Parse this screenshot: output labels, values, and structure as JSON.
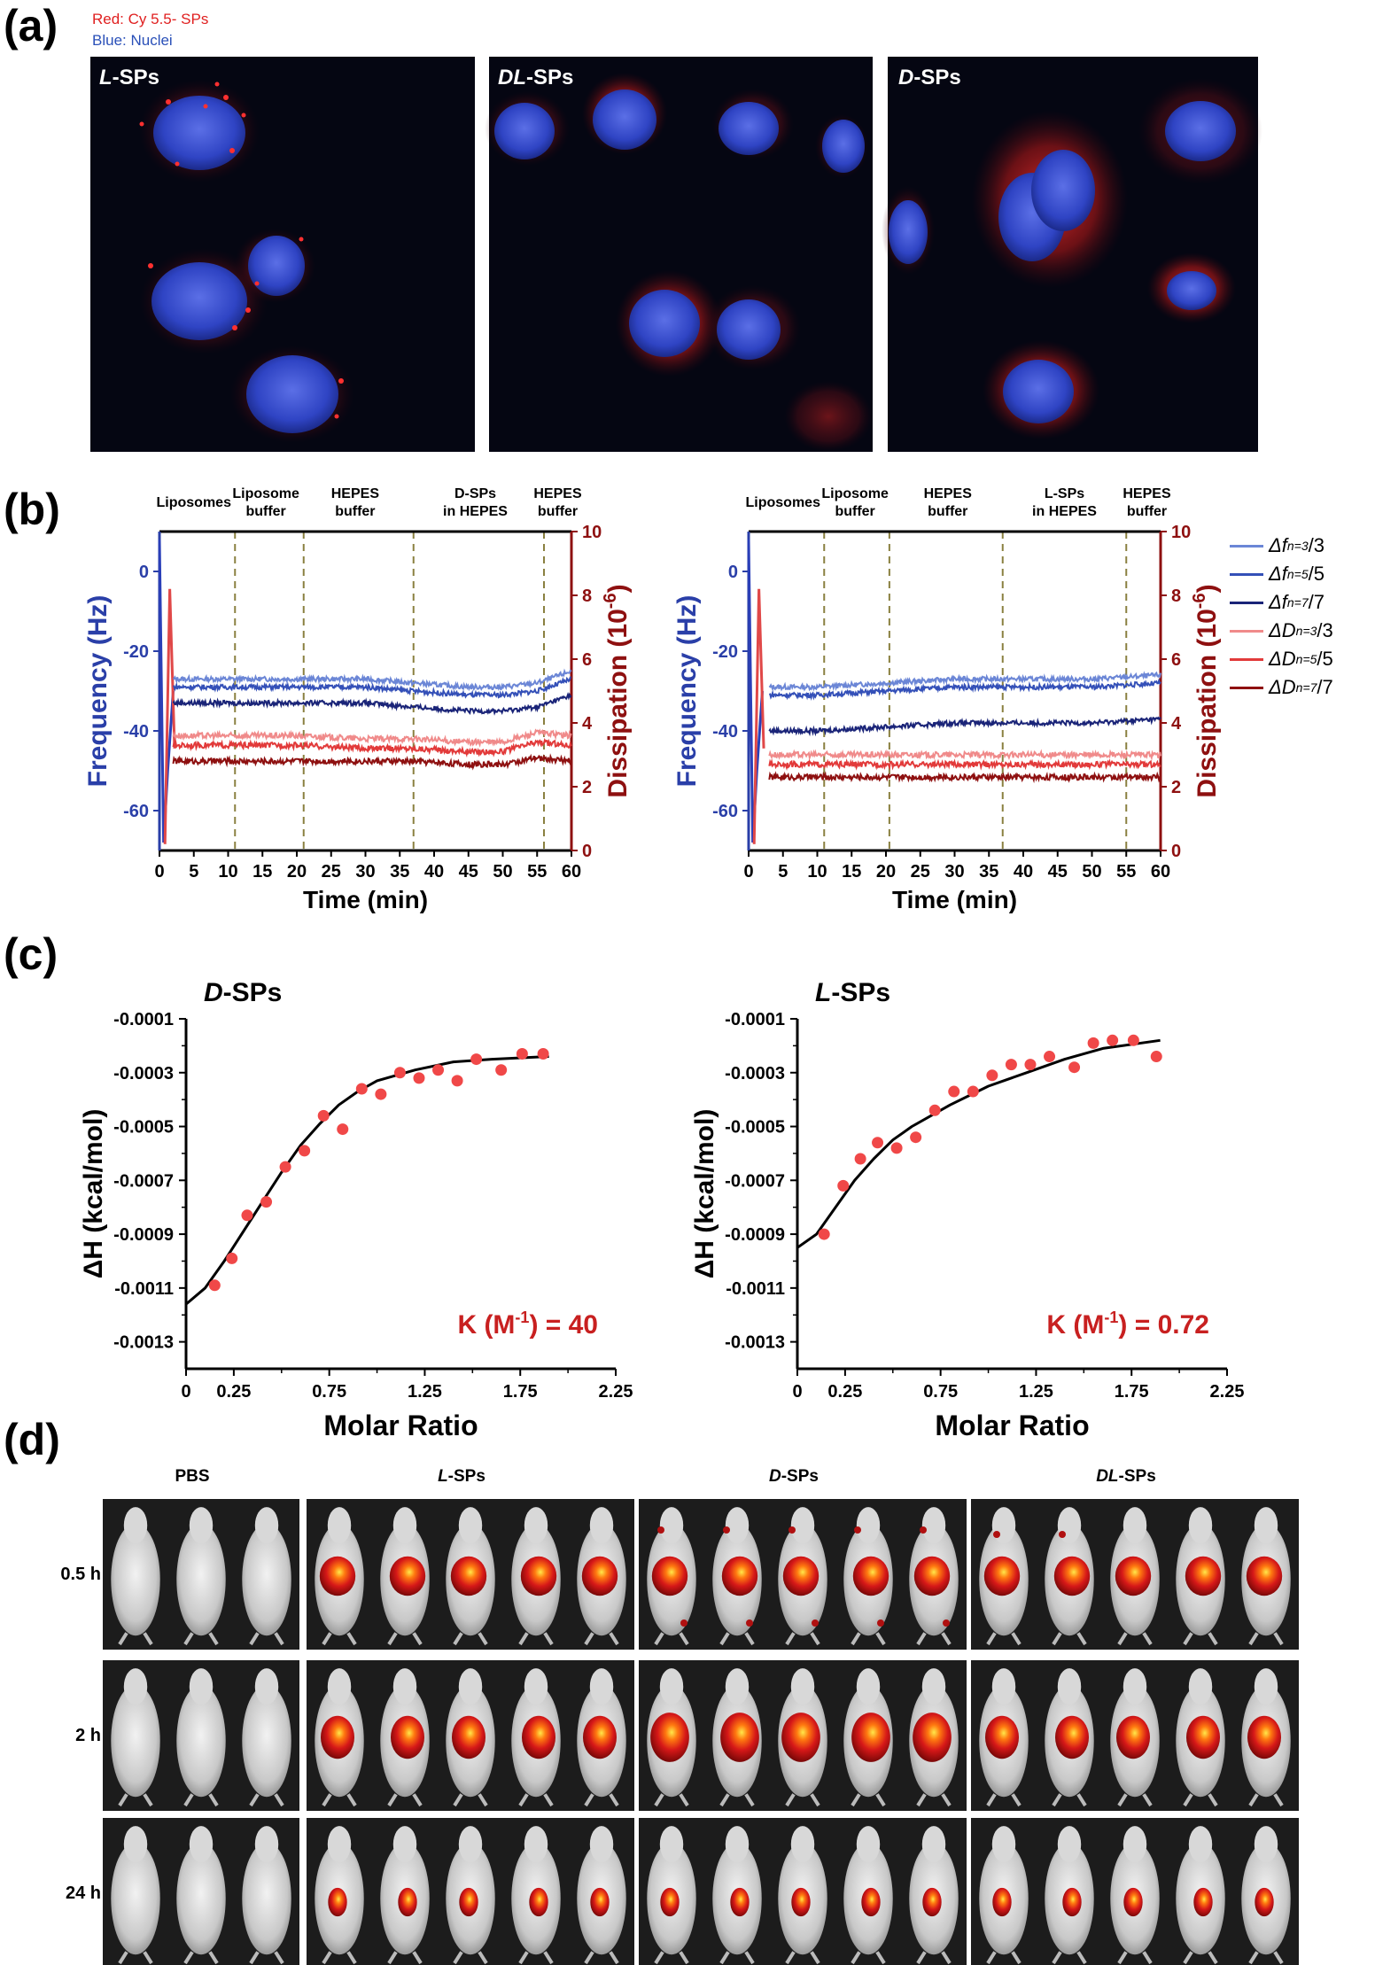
{
  "panel_a": {
    "label": "(a)",
    "legend_red": "Red: Cy 5.5- SPs",
    "legend_blue": "Blue: Nuclei",
    "colors": {
      "red": "#e02020",
      "blue": "#2a3fb0",
      "bg": "#050612"
    },
    "images": [
      {
        "prefix": "L",
        "suffix": "-SPs"
      },
      {
        "prefix": "DL",
        "suffix": "-SPs"
      },
      {
        "prefix": "D",
        "suffix": "-SPs"
      }
    ]
  },
  "panel_b": {
    "label": "(b)",
    "left_ylabel": "Frequency (Hz)",
    "right_ylabel": "Dissipation (10",
    "right_ylabel_exp": "-6",
    "right_ylabel_end": ")",
    "xlabel": "Time (min)",
    "legend": [
      {
        "sym": "Δf",
        "sub": "n=3",
        "tail": "/3",
        "color": "#6b86d6"
      },
      {
        "sym": "Δf",
        "sub": "n=5",
        "tail": "/5",
        "color": "#3450b8"
      },
      {
        "sym": "Δf",
        "sub": "n=7",
        "tail": "/7",
        "color": "#1a2478"
      },
      {
        "sym": "ΔD",
        "sub": "n=3",
        "tail": "/3",
        "color": "#f08a8a"
      },
      {
        "sym": "ΔD",
        "sub": "n=5",
        "tail": "/5",
        "color": "#e23a3a"
      },
      {
        "sym": "ΔD",
        "sub": "n=7",
        "tail": "/7",
        "color": "#8e1010"
      }
    ]
  },
  "chart_data": [
    {
      "type": "line",
      "title": "",
      "xlabel": "Time (min)",
      "ylabel": "Frequency (Hz)",
      "y2label": "Dissipation (10^-6)",
      "xlim": [
        0,
        60
      ],
      "ylim": [
        -70,
        10
      ],
      "y2lim": [
        0,
        10
      ],
      "xticks": [
        "0",
        "5",
        "10",
        "15",
        "20",
        "25",
        "30",
        "35",
        "40",
        "45",
        "50",
        "55",
        "60"
      ],
      "yticks": [
        "0",
        "-20",
        "-40",
        "-60"
      ],
      "y2ticks": [
        "0",
        "2",
        "4",
        "6",
        "8",
        "10"
      ],
      "phases": [
        {
          "label": [
            "Liposomes"
          ],
          "x": 5
        },
        {
          "label": [
            "Liposome",
            "buffer"
          ],
          "x": 15.5
        },
        {
          "label": [
            "HEPES",
            "buffer"
          ],
          "x": 28.5
        },
        {
          "label": [
            "D-SPs",
            "in HEPES"
          ],
          "x": 46
        },
        {
          "label": [
            "HEPES",
            "buffer"
          ],
          "x": 58
        }
      ],
      "boundaries": [
        11,
        21,
        37,
        56
      ],
      "series": [
        {
          "name": "Δf n=3/3",
          "axis": "left",
          "x": [
            2,
            10,
            20,
            30,
            37,
            45,
            50,
            55,
            60
          ],
          "y": [
            -27,
            -27,
            -27,
            -27,
            -28,
            -29,
            -29,
            -28,
            -25
          ]
        },
        {
          "name": "Δf n=5/5",
          "axis": "left",
          "x": [
            2,
            10,
            20,
            30,
            37,
            45,
            50,
            55,
            60
          ],
          "y": [
            -29,
            -29,
            -29,
            -29,
            -30,
            -31,
            -31,
            -30,
            -27
          ]
        },
        {
          "name": "Δf n=7/7",
          "axis": "left",
          "x": [
            2,
            10,
            20,
            30,
            37,
            45,
            50,
            55,
            60
          ],
          "y": [
            -33,
            -33,
            -33,
            -33,
            -34,
            -35,
            -35,
            -34,
            -31
          ]
        },
        {
          "name": "ΔD n=3/3",
          "axis": "right",
          "x": [
            2,
            10,
            20,
            30,
            37,
            45,
            50,
            55,
            60
          ],
          "y": [
            3.6,
            3.6,
            3.6,
            3.5,
            3.5,
            3.4,
            3.4,
            3.7,
            3.6
          ]
        },
        {
          "name": "ΔD n=5/5",
          "axis": "right",
          "x": [
            2,
            10,
            20,
            30,
            37,
            45,
            50,
            55,
            60
          ],
          "y": [
            3.3,
            3.3,
            3.3,
            3.2,
            3.2,
            3.1,
            3.1,
            3.4,
            3.3
          ]
        },
        {
          "name": "ΔD n=7/7",
          "axis": "right",
          "x": [
            2,
            10,
            20,
            30,
            37,
            45,
            50,
            55,
            60
          ],
          "y": [
            2.8,
            2.8,
            2.8,
            2.8,
            2.8,
            2.7,
            2.7,
            2.9,
            2.8
          ]
        }
      ]
    },
    {
      "type": "line",
      "title": "",
      "xlabel": "Time (min)",
      "ylabel": "Frequency (Hz)",
      "y2label": "Dissipation (10^-6)",
      "xlim": [
        0,
        60
      ],
      "ylim": [
        -70,
        10
      ],
      "y2lim": [
        0,
        10
      ],
      "xticks": [
        "0",
        "5",
        "10",
        "15",
        "20",
        "25",
        "30",
        "35",
        "40",
        "45",
        "50",
        "55",
        "60"
      ],
      "yticks": [
        "0",
        "-20",
        "-40",
        "-60"
      ],
      "y2ticks": [
        "0",
        "2",
        "4",
        "6",
        "8",
        "10"
      ],
      "phases": [
        {
          "label": [
            "Liposomes"
          ],
          "x": 5
        },
        {
          "label": [
            "Liposome",
            "buffer"
          ],
          "x": 15.5
        },
        {
          "label": [
            "HEPES",
            "buffer"
          ],
          "x": 29
        },
        {
          "label": [
            "L-SPs",
            "in HEPES"
          ],
          "x": 46
        },
        {
          "label": [
            "HEPES",
            "buffer"
          ],
          "x": 58
        }
      ],
      "boundaries": [
        11,
        20.5,
        37,
        55
      ],
      "series": [
        {
          "name": "Δf n=3/3",
          "axis": "left",
          "x": [
            3,
            10,
            20,
            30,
            40,
            50,
            60
          ],
          "y": [
            -29,
            -29,
            -28,
            -27,
            -27,
            -27,
            -26
          ]
        },
        {
          "name": "Δf n=5/5",
          "axis": "left",
          "x": [
            3,
            10,
            20,
            30,
            40,
            50,
            60
          ],
          "y": [
            -31,
            -31,
            -30,
            -29,
            -29,
            -29,
            -28
          ]
        },
        {
          "name": "Δf n=7/7",
          "axis": "left",
          "x": [
            3,
            10,
            20,
            30,
            40,
            50,
            60
          ],
          "y": [
            -40,
            -40,
            -39,
            -38,
            -38,
            -38,
            -37
          ]
        },
        {
          "name": "ΔD n=3/3",
          "axis": "right",
          "x": [
            3,
            10,
            20,
            30,
            40,
            50,
            60
          ],
          "y": [
            3.0,
            3.0,
            3.0,
            3.0,
            3.0,
            3.0,
            3.0
          ]
        },
        {
          "name": "ΔD n=5/5",
          "axis": "right",
          "x": [
            3,
            10,
            20,
            30,
            40,
            50,
            60
          ],
          "y": [
            2.7,
            2.7,
            2.7,
            2.7,
            2.7,
            2.7,
            2.7
          ]
        },
        {
          "name": "ΔD n=7/7",
          "axis": "right",
          "x": [
            3,
            10,
            20,
            30,
            40,
            50,
            60
          ],
          "y": [
            2.3,
            2.3,
            2.3,
            2.3,
            2.3,
            2.3,
            2.3
          ]
        }
      ]
    },
    {
      "type": "scatter",
      "title": "D-SPs",
      "xlabel": "Molar Ratio",
      "ylabel": "ΔH (kcal/mol)",
      "xlim": [
        0,
        2.25
      ],
      "ylim": [
        -0.0014,
        -0.0001
      ],
      "xticks": [
        "0",
        "0.25",
        "0.75",
        "1.25",
        "1.75",
        "2.25"
      ],
      "xtick_values": [
        0,
        0.25,
        0.75,
        1.25,
        1.75,
        2.25
      ],
      "yticks": [
        "-0.0001",
        "-0.0003",
        "-0.0005",
        "-0.0007",
        "-0.0009",
        "-0.0011",
        "-0.0013"
      ],
      "ytick_values": [
        -0.0001,
        -0.0003,
        -0.0005,
        -0.0007,
        -0.0009,
        -0.0011,
        -0.0013
      ],
      "annotation": "K (M",
      "annotation_exp": "-1",
      "annotation_end": ") = 40",
      "points_x": [
        0.15,
        0.24,
        0.32,
        0.42,
        0.52,
        0.62,
        0.72,
        0.82,
        0.92,
        1.02,
        1.12,
        1.22,
        1.32,
        1.42,
        1.52,
        1.65,
        1.76,
        1.87
      ],
      "points_y": [
        -0.00109,
        -0.00099,
        -0.00083,
        -0.00078,
        -0.00065,
        -0.00059,
        -0.00046,
        -0.00051,
        -0.00036,
        -0.00038,
        -0.0003,
        -0.00032,
        -0.00029,
        -0.00033,
        -0.00025,
        -0.00029,
        -0.00023,
        -0.00023
      ],
      "fit_x": [
        0,
        0.1,
        0.2,
        0.3,
        0.4,
        0.5,
        0.6,
        0.7,
        0.8,
        0.9,
        1.0,
        1.2,
        1.4,
        1.6,
        1.9
      ],
      "fit_y": [
        -0.00116,
        -0.0011,
        -0.001,
        -0.00089,
        -0.00078,
        -0.00067,
        -0.00057,
        -0.00049,
        -0.00042,
        -0.00037,
        -0.00033,
        -0.00029,
        -0.00026,
        -0.00025,
        -0.00024
      ]
    },
    {
      "type": "scatter",
      "title": "L-SPs",
      "xlabel": "Molar Ratio",
      "ylabel": "ΔH (kcal/mol)",
      "xlim": [
        0,
        2.25
      ],
      "ylim": [
        -0.0014,
        -0.0001
      ],
      "xticks": [
        "0",
        "0.25",
        "0.75",
        "1.25",
        "1.75",
        "2.25"
      ],
      "xtick_values": [
        0,
        0.25,
        0.75,
        1.25,
        1.75,
        2.25
      ],
      "yticks": [
        "-0.0001",
        "-0.0003",
        "-0.0005",
        "-0.0007",
        "-0.0009",
        "-0.0011",
        "-0.0013"
      ],
      "ytick_values": [
        -0.0001,
        -0.0003,
        -0.0005,
        -0.0007,
        -0.0009,
        -0.0011,
        -0.0013
      ],
      "annotation": "K (M",
      "annotation_exp": "-1",
      "annotation_end": ") = 0.72",
      "points_x": [
        0.14,
        0.24,
        0.33,
        0.42,
        0.52,
        0.62,
        0.72,
        0.82,
        0.92,
        1.02,
        1.12,
        1.22,
        1.32,
        1.45,
        1.55,
        1.65,
        1.76,
        1.88
      ],
      "points_y": [
        -0.0009,
        -0.00072,
        -0.00062,
        -0.00056,
        -0.00058,
        -0.00054,
        -0.00044,
        -0.00037,
        -0.00037,
        -0.00031,
        -0.00027,
        -0.00027,
        -0.00024,
        -0.00028,
        -0.00019,
        -0.00018,
        -0.00018,
        -0.00024
      ],
      "fit_x": [
        0,
        0.1,
        0.2,
        0.3,
        0.4,
        0.5,
        0.6,
        0.8,
        1.0,
        1.2,
        1.4,
        1.6,
        1.9
      ],
      "fit_y": [
        -0.00095,
        -0.0009,
        -0.0008,
        -0.0007,
        -0.00062,
        -0.00055,
        -0.0005,
        -0.00042,
        -0.00035,
        -0.0003,
        -0.00025,
        -0.00021,
        -0.00018
      ]
    }
  ],
  "panel_c": {
    "label": "(c)"
  },
  "panel_d": {
    "label": "(d)",
    "groups": [
      {
        "prefix": "",
        "suffix": "PBS",
        "count": 3
      },
      {
        "prefix": "L",
        "suffix": "-SPs",
        "count": 5
      },
      {
        "prefix": "D",
        "suffix": "-SPs",
        "count": 5
      },
      {
        "prefix": "DL",
        "suffix": "-SPs",
        "count": 5
      }
    ],
    "times": [
      "0.5 h",
      "2 h",
      "24 h"
    ]
  }
}
